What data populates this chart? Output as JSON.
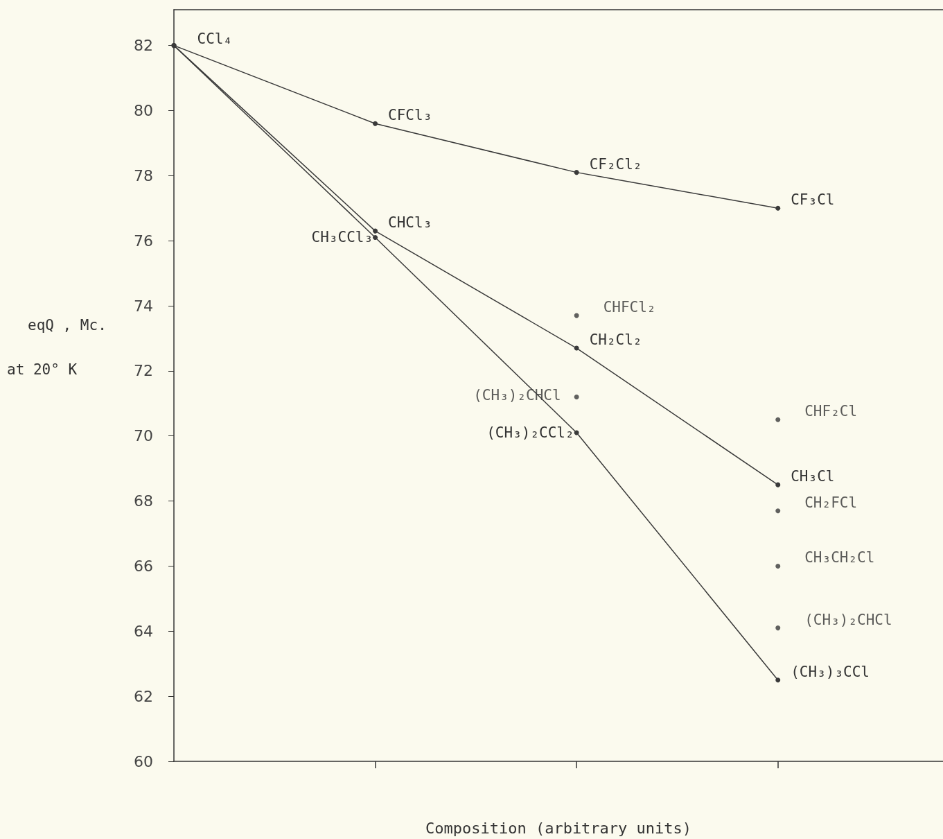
{
  "chart_data": {
    "type": "line",
    "xlabel": "Composition (arbitrary units)",
    "ylabel": "eqQ , Mc.\nat 20° K",
    "categories": [
      null,
      null,
      null,
      null
    ],
    "ylim": [
      60,
      83.1
    ],
    "yticks": [
      60,
      62,
      64,
      66,
      68,
      70,
      72,
      74,
      76,
      78,
      80,
      82
    ],
    "grid": false,
    "marker": "circle",
    "line_style": "solid",
    "tick_labels": "y",
    "series": [
      {
        "color": "#3a3a3a",
        "values": [
          82,
          79.6,
          78.1,
          77.0
        ],
        "value_labels": [
          "CCl₄",
          "CFCl₃",
          "CF₂Cl₂",
          "CF₃Cl"
        ]
      },
      {
        "color": "#3a3a3a",
        "values": [
          82,
          76.3,
          72.7,
          68.5
        ],
        "value_labels": [
          null,
          "CHCl₃",
          "CH₂Cl₂",
          "CH₃Cl"
        ]
      },
      {
        "color": "#3a3a3a",
        "values": [
          82,
          76.1,
          70.1,
          62.5
        ],
        "value_labels": [
          null,
          "CH₃CCl₃",
          "(CH₃)₂CCl₂",
          "(CH₃)₃CCl"
        ]
      },
      {
        "type": "scatter",
        "color": "#3a3a3a",
        "values": [
          null,
          null,
          73.7,
          70.5
        ],
        "value_labels": [
          null,
          null,
          "CHFCl₂",
          "CHF₂Cl"
        ]
      },
      {
        "type": "scatter",
        "color": "#3a3a3a",
        "values": [
          null,
          null,
          71.2,
          67.7
        ],
        "value_labels": [
          null,
          null,
          "(CH₃)₂CHCl",
          "CH₂FCl"
        ]
      },
      {
        "type": "scatter",
        "color": "#3a3a3a",
        "values": [
          null,
          null,
          null,
          66
        ],
        "value_labels": [
          null,
          null,
          null,
          "CH₃CH₂Cl"
        ]
      },
      {
        "type": "scatter",
        "color": "#3a3a3a",
        "values": [
          null,
          null,
          null,
          64.1
        ],
        "value_labels": [
          null,
          null,
          null,
          "(CH₃)₂CHCl"
        ]
      }
    ]
  }
}
